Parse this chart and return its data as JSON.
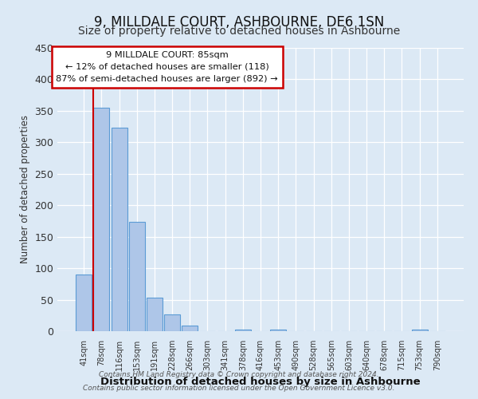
{
  "title": "9, MILLDALE COURT, ASHBOURNE, DE6 1SN",
  "subtitle": "Size of property relative to detached houses in Ashbourne",
  "xlabel": "Distribution of detached houses by size in Ashbourne",
  "ylabel": "Number of detached properties",
  "bin_labels": [
    "41sqm",
    "78sqm",
    "116sqm",
    "153sqm",
    "191sqm",
    "228sqm",
    "266sqm",
    "303sqm",
    "341sqm",
    "378sqm",
    "416sqm",
    "453sqm",
    "490sqm",
    "528sqm",
    "565sqm",
    "603sqm",
    "640sqm",
    "678sqm",
    "715sqm",
    "753sqm",
    "790sqm"
  ],
  "bar_values": [
    90,
    355,
    323,
    174,
    53,
    26,
    9,
    0,
    0,
    3,
    0,
    3,
    0,
    0,
    0,
    0,
    0,
    0,
    0,
    3,
    0
  ],
  "bar_color": "#aec6e8",
  "bar_edge_color": "#5b9bd5",
  "ylim": [
    0,
    450
  ],
  "yticks": [
    0,
    50,
    100,
    150,
    200,
    250,
    300,
    350,
    400,
    450
  ],
  "annotation_title": "9 MILLDALE COURT: 85sqm",
  "annotation_line1": "← 12% of detached houses are smaller (118)",
  "annotation_line2": "87% of semi-detached houses are larger (892) →",
  "footer_line1": "Contains HM Land Registry data © Crown copyright and database right 2024.",
  "footer_line2": "Contains public sector information licensed under the Open Government Licence v3.0.",
  "background_color": "#dce9f5",
  "footer_bg_color": "#ffffff",
  "vline_color": "#cc0000",
  "annotation_box_edge_color": "#cc0000"
}
